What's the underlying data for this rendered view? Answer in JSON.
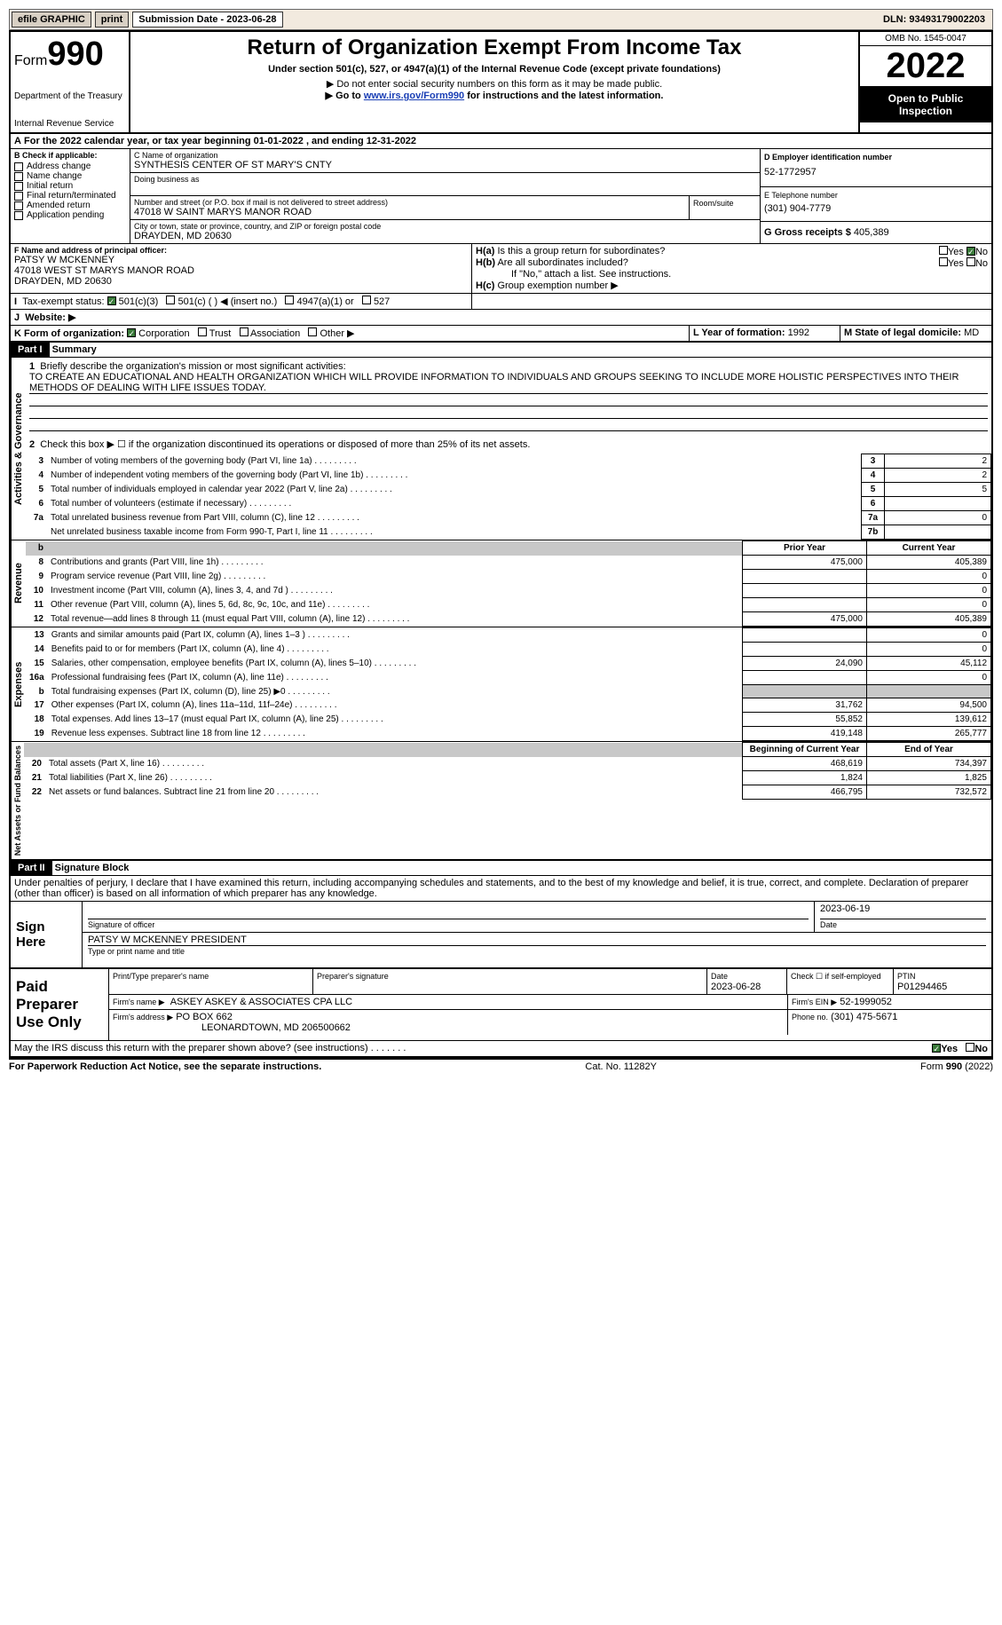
{
  "topbar": {
    "efile": "efile GRAPHIC",
    "print": "print",
    "sub_label": "Submission Date - 2023-06-28",
    "dln": "DLN: 93493179002203"
  },
  "header": {
    "form": "Form",
    "num": "990",
    "dept": "Department of the Treasury",
    "irs": "Internal Revenue Service",
    "title": "Return of Organization Exempt From Income Tax",
    "sub1": "Under section 501(c), 527, or 4947(a)(1) of the Internal Revenue Code (except private foundations)",
    "sub2": "▶ Do not enter social security numbers on this form as it may be made public.",
    "sub3_pre": "▶ Go to ",
    "sub3_link": "www.irs.gov/Form990",
    "sub3_post": " for instructions and the latest information.",
    "omb": "OMB No. 1545-0047",
    "year": "2022",
    "open": "Open to Public Inspection"
  },
  "lineA": "For the 2022 calendar year, or tax year beginning 01-01-2022     , and ending 12-31-2022",
  "boxB": {
    "label": "B Check if applicable:",
    "items": [
      "Address change",
      "Name change",
      "Initial return",
      "Final return/terminated",
      "Amended return",
      "Application pending"
    ]
  },
  "boxC": {
    "label": "C Name of organization",
    "name": "SYNTHESIS CENTER OF ST MARY'S CNTY",
    "dba_lbl": "Doing business as",
    "addr_lbl": "Number and street (or P.O. box if mail is not delivered to street address)",
    "room_lbl": "Room/suite",
    "addr": "47018 W SAINT MARYS MANOR ROAD",
    "city_lbl": "City or town, state or province, country, and ZIP or foreign postal code",
    "city": "DRAYDEN, MD  20630"
  },
  "boxD": {
    "label": "D Employer identification number",
    "val": "52-1772957"
  },
  "boxE": {
    "label": "E Telephone number",
    "val": "(301) 904-7779"
  },
  "boxG": {
    "label": "G Gross receipts $",
    "val": "405,389"
  },
  "boxF": {
    "label": "F  Name and address of principal officer:",
    "name": "PATSY W MCKENNEY",
    "addr1": "47018 WEST ST MARYS MANOR ROAD",
    "addr2": "DRAYDEN, MD  20630"
  },
  "boxH": {
    "a": "Is this a group return for subordinates?",
    "b": "Are all subordinates included?",
    "bnote": "If \"No,\" attach a list. See instructions.",
    "c": "Group exemption number ▶",
    "yes": "Yes",
    "no": "No"
  },
  "boxI": {
    "label": "Tax-exempt status:",
    "opts": [
      "501(c)(3)",
      "501(c) (  ) ◀ (insert no.)",
      "4947(a)(1) or",
      "527"
    ]
  },
  "boxJ": "Website: ▶",
  "boxK": {
    "label": "K Form of organization:",
    "opts": [
      "Corporation",
      "Trust",
      "Association",
      "Other ▶"
    ]
  },
  "boxL": {
    "label": "L Year of formation:",
    "val": "1992"
  },
  "boxM": {
    "label": "M State of legal domicile:",
    "val": "MD"
  },
  "part1": {
    "hdr": "Part I",
    "title": "Summary",
    "q1": "Briefly describe the organization's mission or most significant activities:",
    "mission": "TO CREATE AN EDUCATIONAL AND HEALTH ORGANIZATION WHICH WILL PROVIDE INFORMATION TO INDIVIDUALS AND GROUPS SEEKING TO INCLUDE MORE HOLISTIC PERSPECTIVES INTO THEIR METHODS OF DEALING WITH LIFE ISSUES TODAY.",
    "q2": "Check this box ▶ ☐ if the organization discontinued its operations or disposed of more than 25% of its net assets.",
    "side_a": "Activities & Governance",
    "side_r": "Revenue",
    "side_e": "Expenses",
    "side_n": "Net Assets or Fund Balances",
    "cols": {
      "prior": "Prior Year",
      "current": "Current Year",
      "boy": "Beginning of Current Year",
      "eoy": "End of Year"
    },
    "lines_gov": [
      {
        "n": "3",
        "d": "Number of voting members of the governing body (Part VI, line 1a)",
        "box": "3",
        "v": "2"
      },
      {
        "n": "4",
        "d": "Number of independent voting members of the governing body (Part VI, line 1b)",
        "box": "4",
        "v": "2"
      },
      {
        "n": "5",
        "d": "Total number of individuals employed in calendar year 2022 (Part V, line 2a)",
        "box": "5",
        "v": "5"
      },
      {
        "n": "6",
        "d": "Total number of volunteers (estimate if necessary)",
        "box": "6",
        "v": ""
      },
      {
        "n": "7a",
        "d": "Total unrelated business revenue from Part VIII, column (C), line 12",
        "box": "7a",
        "v": "0"
      },
      {
        "n": "",
        "d": "Net unrelated business taxable income from Form 990-T, Part I, line 11",
        "box": "7b",
        "v": ""
      }
    ],
    "lines_rev": [
      {
        "n": "8",
        "d": "Contributions and grants (Part VIII, line 1h)",
        "p": "475,000",
        "c": "405,389"
      },
      {
        "n": "9",
        "d": "Program service revenue (Part VIII, line 2g)",
        "p": "",
        "c": "0"
      },
      {
        "n": "10",
        "d": "Investment income (Part VIII, column (A), lines 3, 4, and 7d )",
        "p": "",
        "c": "0"
      },
      {
        "n": "11",
        "d": "Other revenue (Part VIII, column (A), lines 5, 6d, 8c, 9c, 10c, and 11e)",
        "p": "",
        "c": "0"
      },
      {
        "n": "12",
        "d": "Total revenue—add lines 8 through 11 (must equal Part VIII, column (A), line 12)",
        "p": "475,000",
        "c": "405,389"
      }
    ],
    "lines_exp": [
      {
        "n": "13",
        "d": "Grants and similar amounts paid (Part IX, column (A), lines 1–3 )",
        "p": "",
        "c": "0"
      },
      {
        "n": "14",
        "d": "Benefits paid to or for members (Part IX, column (A), line 4)",
        "p": "",
        "c": "0"
      },
      {
        "n": "15",
        "d": "Salaries, other compensation, employee benefits (Part IX, column (A), lines 5–10)",
        "p": "24,090",
        "c": "45,112"
      },
      {
        "n": "16a",
        "d": "Professional fundraising fees (Part IX, column (A), line 11e)",
        "p": "",
        "c": "0"
      },
      {
        "n": "b",
        "d": "Total fundraising expenses (Part IX, column (D), line 25) ▶0",
        "p": "GREY",
        "c": "GREY"
      },
      {
        "n": "17",
        "d": "Other expenses (Part IX, column (A), lines 11a–11d, 11f–24e)",
        "p": "31,762",
        "c": "94,500"
      },
      {
        "n": "18",
        "d": "Total expenses. Add lines 13–17 (must equal Part IX, column (A), line 25)",
        "p": "55,852",
        "c": "139,612"
      },
      {
        "n": "19",
        "d": "Revenue less expenses. Subtract line 18 from line 12",
        "p": "419,148",
        "c": "265,777"
      }
    ],
    "lines_net": [
      {
        "n": "20",
        "d": "Total assets (Part X, line 16)",
        "p": "468,619",
        "c": "734,397"
      },
      {
        "n": "21",
        "d": "Total liabilities (Part X, line 26)",
        "p": "1,824",
        "c": "1,825"
      },
      {
        "n": "22",
        "d": "Net assets or fund balances. Subtract line 21 from line 20",
        "p": "466,795",
        "c": "732,572"
      }
    ]
  },
  "part2": {
    "hdr": "Part II",
    "title": "Signature Block",
    "decl": "Under penalties of perjury, I declare that I have examined this return, including accompanying schedules and statements, and to the best of my knowledge and belief, it is true, correct, and complete. Declaration of preparer (other than officer) is based on all information of which preparer has any knowledge.",
    "sign_here": "Sign Here",
    "sig_date": "2023-06-19",
    "sig_lbl": "Signature of officer",
    "date_lbl": "Date",
    "name": "PATSY W MCKENNEY  PRESIDENT",
    "name_lbl": "Type or print name and title",
    "paid": "Paid Preparer Use Only",
    "prep_name_lbl": "Print/Type preparer's name",
    "prep_sig_lbl": "Preparer's signature",
    "prep_date_lbl": "Date",
    "prep_date": "2023-06-28",
    "self_lbl": "Check ☐ if self-employed",
    "ptin_lbl": "PTIN",
    "ptin": "P01294465",
    "firm_name_lbl": "Firm's name    ▶",
    "firm_name": "ASKEY ASKEY & ASSOCIATES CPA LLC",
    "firm_ein_lbl": "Firm's EIN ▶",
    "firm_ein": "52-1999052",
    "firm_addr_lbl": "Firm's address ▶",
    "firm_addr1": "PO BOX 662",
    "firm_addr2": "LEONARDTOWN, MD  206500662",
    "phone_lbl": "Phone no.",
    "phone": "(301) 475-5671",
    "discuss": "May the IRS discuss this return with the preparer shown above? (see instructions)",
    "yes": "Yes",
    "no": "No"
  },
  "footer": {
    "pra": "For Paperwork Reduction Act Notice, see the separate instructions.",
    "cat": "Cat. No. 11282Y",
    "form": "Form 990 (2022)"
  }
}
